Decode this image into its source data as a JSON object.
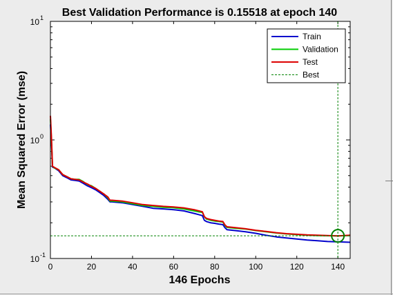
{
  "chart_data": {
    "type": "line",
    "title": "Best Validation Performance is 0.15518 at epoch 140",
    "xlabel": "146 Epochs",
    "ylabel": "Mean Squared Error  (mse)",
    "y_scale": "log",
    "xlim": [
      0,
      146
    ],
    "ylim": [
      0.1,
      10
    ],
    "x_ticks": [
      0,
      20,
      40,
      60,
      80,
      100,
      120,
      140
    ],
    "y_ticks": [
      {
        "value": 0.1,
        "base": "10",
        "exp": "-1"
      },
      {
        "value": 1,
        "base": "10",
        "exp": "0"
      },
      {
        "value": 10,
        "base": "10",
        "exp": "1"
      }
    ],
    "legend": {
      "placement": "top-right"
    },
    "best": {
      "epoch": 140,
      "value": 0.15518,
      "label": "Best",
      "color": "#008000"
    },
    "series": [
      {
        "name": "Train",
        "color": "#0000cc",
        "x": [
          0,
          0.5,
          1,
          2,
          4,
          6,
          8,
          10,
          12,
          14,
          16,
          18,
          20,
          22,
          24,
          26,
          28,
          29,
          30,
          35,
          40,
          45,
          50,
          55,
          60,
          65,
          70,
          72,
          74,
          75,
          76,
          78,
          80,
          82,
          84,
          85,
          86,
          90,
          95,
          100,
          105,
          110,
          115,
          120,
          125,
          130,
          135,
          140,
          146
        ],
        "values": [
          1.35,
          0.95,
          0.59,
          0.58,
          0.55,
          0.5,
          0.48,
          0.46,
          0.455,
          0.45,
          0.43,
          0.41,
          0.395,
          0.38,
          0.36,
          0.34,
          0.315,
          0.3,
          0.3,
          0.295,
          0.285,
          0.275,
          0.265,
          0.262,
          0.258,
          0.252,
          0.24,
          0.235,
          0.23,
          0.21,
          0.205,
          0.2,
          0.198,
          0.195,
          0.193,
          0.182,
          0.175,
          0.172,
          0.168,
          0.163,
          0.157,
          0.152,
          0.149,
          0.146,
          0.143,
          0.141,
          0.139,
          0.138,
          0.137
        ]
      },
      {
        "name": "Validation",
        "color": "#00cc00",
        "x": [
          0,
          0.5,
          1,
          2,
          4,
          6,
          8,
          10,
          12,
          14,
          16,
          18,
          20,
          22,
          24,
          26,
          28,
          29,
          30,
          35,
          40,
          45,
          50,
          55,
          60,
          65,
          70,
          72,
          74,
          75,
          76,
          78,
          80,
          82,
          84,
          85,
          86,
          90,
          95,
          100,
          105,
          110,
          115,
          120,
          125,
          130,
          135,
          140,
          146
        ],
        "values": [
          1.5,
          1.0,
          0.6,
          0.58,
          0.56,
          0.51,
          0.49,
          0.47,
          0.465,
          0.465,
          0.445,
          0.42,
          0.41,
          0.39,
          0.37,
          0.35,
          0.325,
          0.305,
          0.305,
          0.3,
          0.29,
          0.28,
          0.275,
          0.27,
          0.268,
          0.262,
          0.252,
          0.248,
          0.245,
          0.225,
          0.215,
          0.21,
          0.207,
          0.205,
          0.203,
          0.19,
          0.183,
          0.18,
          0.177,
          0.172,
          0.168,
          0.164,
          0.161,
          0.159,
          0.157,
          0.156,
          0.1555,
          0.15518,
          0.156
        ]
      },
      {
        "name": "Test",
        "color": "#dd0000",
        "x": [
          0,
          0.5,
          1,
          2,
          4,
          6,
          8,
          10,
          12,
          14,
          16,
          18,
          20,
          22,
          24,
          26,
          28,
          29,
          30,
          35,
          40,
          45,
          50,
          55,
          60,
          65,
          70,
          72,
          74,
          75,
          76,
          78,
          80,
          82,
          84,
          85,
          86,
          90,
          95,
          100,
          105,
          110,
          115,
          120,
          125,
          130,
          135,
          140,
          146
        ],
        "values": [
          1.6,
          1.05,
          0.6,
          0.585,
          0.56,
          0.51,
          0.49,
          0.47,
          0.465,
          0.46,
          0.44,
          0.425,
          0.405,
          0.39,
          0.37,
          0.35,
          0.33,
          0.31,
          0.31,
          0.305,
          0.295,
          0.285,
          0.28,
          0.275,
          0.272,
          0.267,
          0.258,
          0.253,
          0.248,
          0.225,
          0.218,
          0.213,
          0.21,
          0.207,
          0.205,
          0.192,
          0.185,
          0.182,
          0.178,
          0.173,
          0.169,
          0.165,
          0.162,
          0.16,
          0.158,
          0.157,
          0.156,
          0.155,
          0.157
        ]
      }
    ]
  }
}
